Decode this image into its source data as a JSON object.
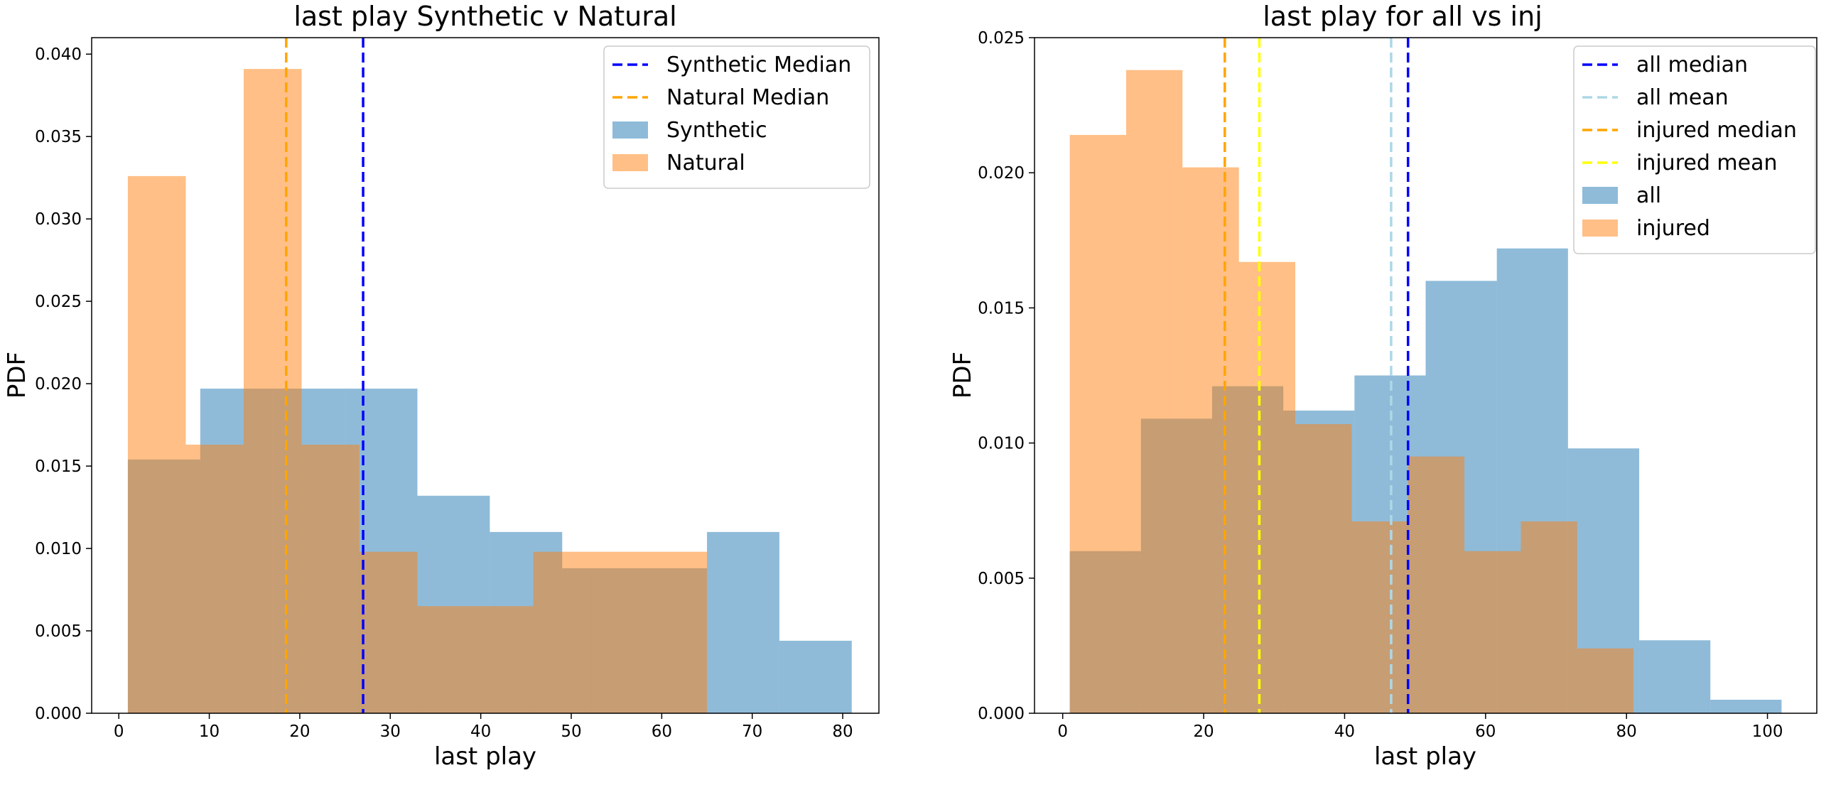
{
  "charts": [
    {
      "title": "last play Synthetic v Natural",
      "xlabel": "last play",
      "ylabel": "PDF",
      "xticks": [
        "0",
        "10",
        "20",
        "30",
        "40",
        "50",
        "60",
        "70",
        "80"
      ],
      "yticks": [
        "0.000",
        "0.005",
        "0.010",
        "0.015",
        "0.020",
        "0.025",
        "0.030",
        "0.035",
        "0.040"
      ],
      "legend": [
        "Synthetic Median",
        "Natural Median",
        "Synthetic",
        "Natural"
      ]
    },
    {
      "title": "last play for all vs inj",
      "xlabel": "last play",
      "ylabel": "PDF",
      "xticks": [
        "0",
        "20",
        "40",
        "60",
        "80",
        "100"
      ],
      "yticks": [
        "0.000",
        "0.005",
        "0.010",
        "0.015",
        "0.020",
        "0.025"
      ],
      "legend": [
        "all median",
        "all mean",
        "injured median",
        "injured mean",
        "all",
        "injured"
      ]
    }
  ],
  "chart_data": [
    {
      "type": "histogram",
      "title": "last play Synthetic v Natural",
      "xlabel": "last play",
      "ylabel": "PDF",
      "xlim": [
        -3,
        84
      ],
      "ylim": [
        0,
        0.041
      ],
      "legend_position": "top-right",
      "series": [
        {
          "name": "Synthetic",
          "color": "#1f77b4",
          "opacity": 0.5,
          "bins": [
            1,
            9,
            17,
            25,
            33,
            41,
            49,
            57,
            65,
            73,
            81
          ],
          "values": [
            0.0154,
            0.0197,
            0.0197,
            0.0197,
            0.0132,
            0.011,
            0.0088,
            0.0088,
            0.011,
            0.0044
          ]
        },
        {
          "name": "Natural",
          "color": "#ff7f0e",
          "opacity": 0.5,
          "bins": [
            1,
            7.4,
            13.8,
            20.2,
            26.6,
            33,
            39.4,
            45.8,
            52.2,
            58.6,
            65
          ],
          "values": [
            0.0326,
            0.0163,
            0.0391,
            0.0163,
            0.0098,
            0.0065,
            0.0065,
            0.0098,
            0.0098,
            0.0098
          ]
        }
      ],
      "reference_lines": [
        {
          "name": "Synthetic Median",
          "x": 27,
          "color": "#0000ff",
          "style": "dashed"
        },
        {
          "name": "Natural Median",
          "x": 18.5,
          "color": "#ffa500",
          "style": "dashed"
        }
      ]
    },
    {
      "type": "histogram",
      "title": "last play for all vs inj",
      "xlabel": "last play",
      "ylabel": "PDF",
      "xlim": [
        -4,
        107
      ],
      "ylim": [
        0,
        0.025
      ],
      "legend_position": "top-right",
      "series": [
        {
          "name": "all",
          "color": "#1f77b4",
          "opacity": 0.5,
          "bins": [
            1,
            11.1,
            21.2,
            31.3,
            41.4,
            51.5,
            61.6,
            71.7,
            81.8,
            91.9,
            102
          ],
          "values": [
            0.006,
            0.0109,
            0.0121,
            0.0112,
            0.0125,
            0.016,
            0.0172,
            0.0098,
            0.0027,
            0.0005
          ]
        },
        {
          "name": "injured",
          "color": "#ff7f0e",
          "opacity": 0.5,
          "bins": [
            1,
            9,
            17,
            25,
            33,
            41,
            49,
            57,
            65,
            73,
            81
          ],
          "values": [
            0.0214,
            0.0238,
            0.0202,
            0.0167,
            0.0107,
            0.0071,
            0.0095,
            0.006,
            0.0071,
            0.0024
          ]
        }
      ],
      "reference_lines": [
        {
          "name": "all median",
          "x": 49,
          "color": "#0000ff",
          "style": "dashed"
        },
        {
          "name": "all mean",
          "x": 46.6,
          "color": "#add8e6",
          "style": "dashed"
        },
        {
          "name": "injured median",
          "x": 23,
          "color": "#ffa500",
          "style": "dashed"
        },
        {
          "name": "injured mean",
          "x": 27.9,
          "color": "#ffff00",
          "style": "dashed"
        }
      ]
    }
  ]
}
